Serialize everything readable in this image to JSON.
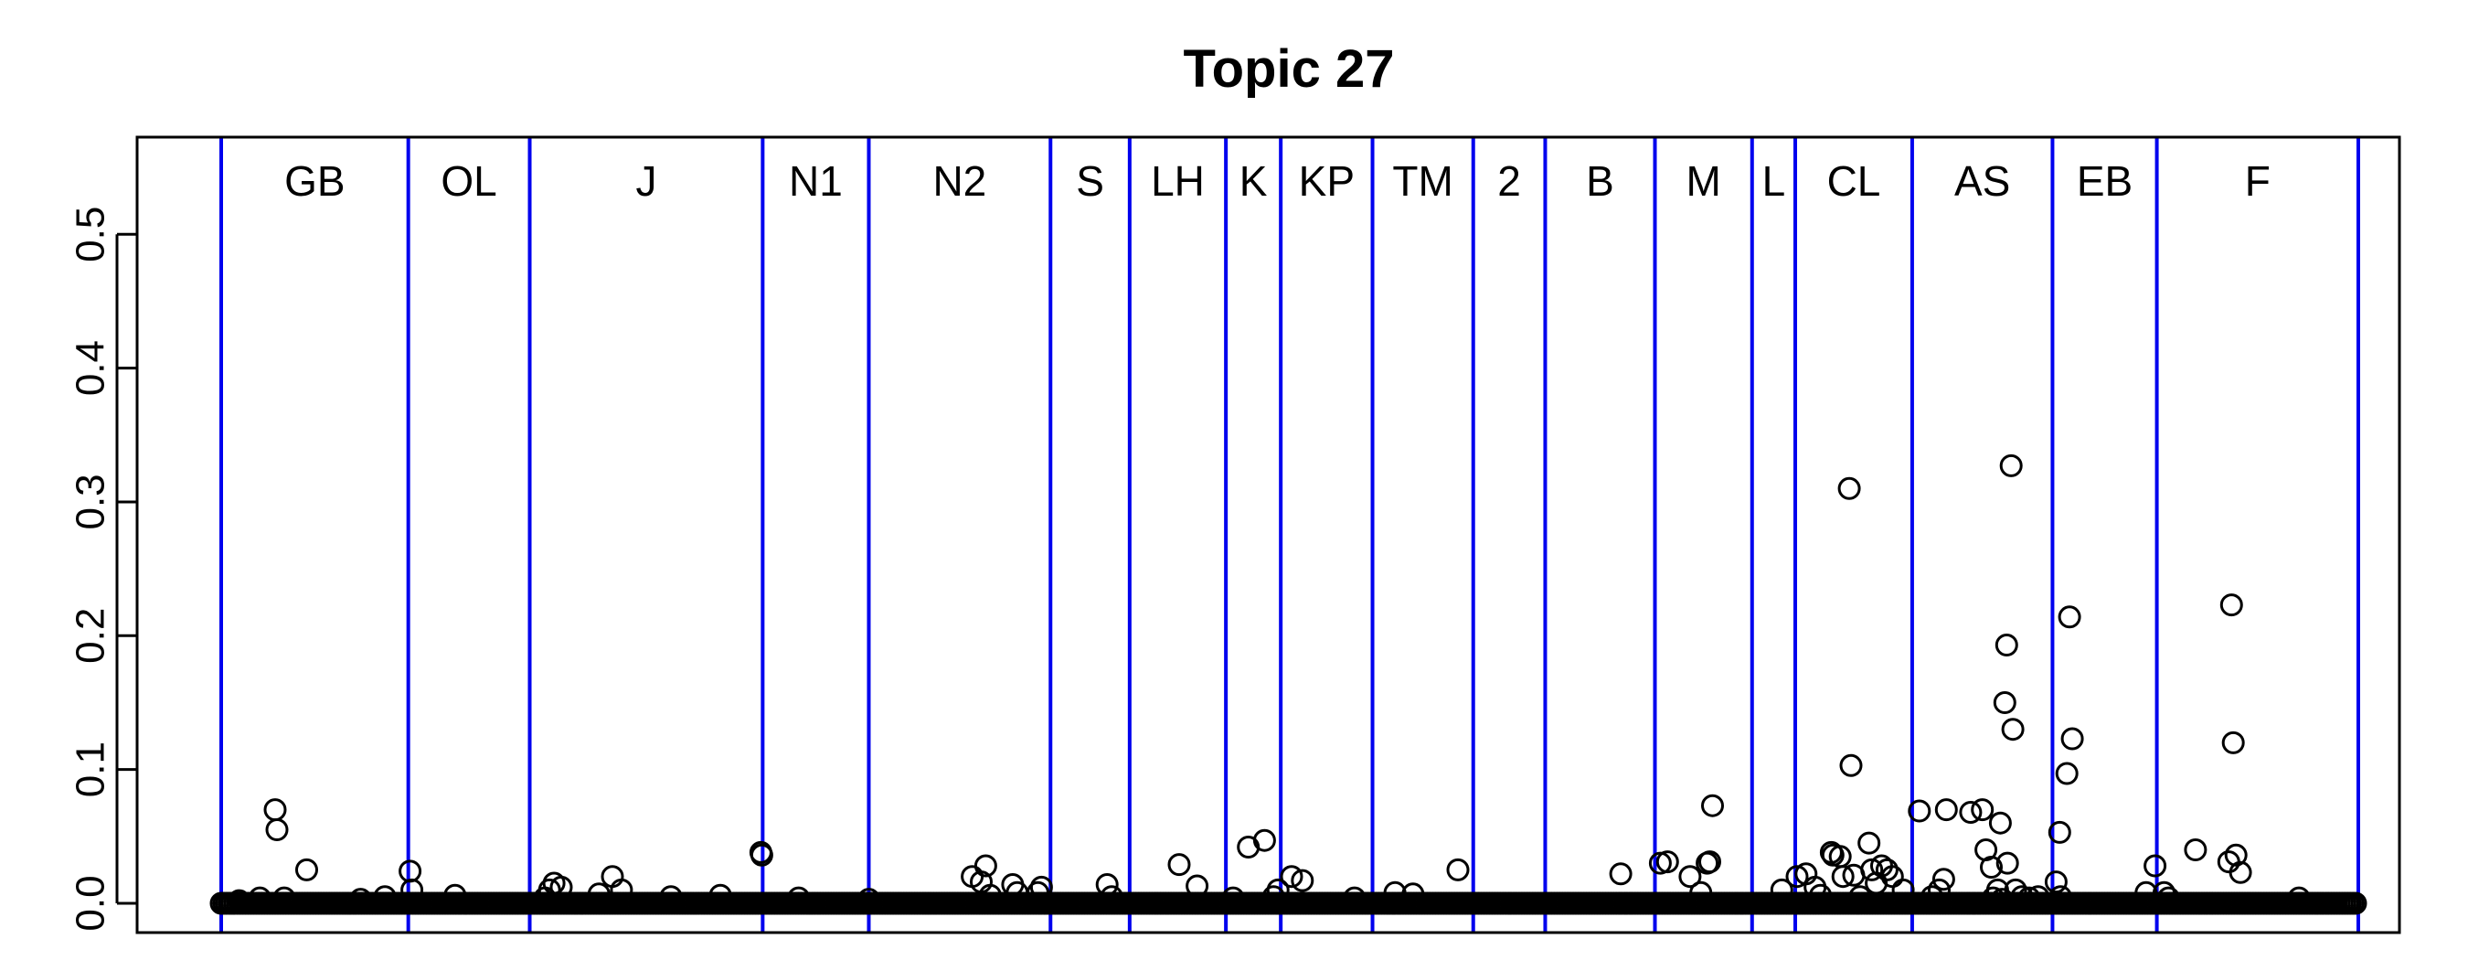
{
  "chart_data": {
    "type": "scatter",
    "title": "Topic 27",
    "xlabel": "",
    "ylabel": "",
    "ylim": [
      0,
      0.55
    ],
    "yticks": [
      "0.0",
      "0.1",
      "0.2",
      "0.3",
      "0.4",
      "0.5"
    ],
    "grid": false,
    "legend": "none",
    "colors": {
      "points": "#000000",
      "dividers": "#0000ee",
      "frame": "#000000"
    },
    "n_documents": 2376,
    "segments": [
      {
        "label": "GB",
        "start": 0,
        "end": 208
      },
      {
        "label": "OL",
        "start": 208,
        "end": 343
      },
      {
        "label": "J",
        "start": 343,
        "end": 602
      },
      {
        "label": "N1",
        "start": 602,
        "end": 720
      },
      {
        "label": "N2",
        "start": 720,
        "end": 922
      },
      {
        "label": "S",
        "start": 922,
        "end": 1010
      },
      {
        "label": "LH",
        "start": 1010,
        "end": 1117
      },
      {
        "label": "K",
        "start": 1117,
        "end": 1178
      },
      {
        "label": "KP",
        "start": 1178,
        "end": 1280
      },
      {
        "label": "TM",
        "start": 1280,
        "end": 1392
      },
      {
        "label": "2",
        "start": 1392,
        "end": 1472
      },
      {
        "label": "B",
        "start": 1472,
        "end": 1594
      },
      {
        "label": "M",
        "start": 1594,
        "end": 1702
      },
      {
        "label": "L",
        "start": 1702,
        "end": 1750
      },
      {
        "label": "CL",
        "start": 1750,
        "end": 1880
      },
      {
        "label": "AS",
        "start": 1880,
        "end": 2036
      },
      {
        "label": "EB",
        "start": 2036,
        "end": 2152
      },
      {
        "label": "F",
        "start": 2152,
        "end": 2376
      }
    ],
    "baseline_value": 0.0,
    "points": [
      {
        "x": 20,
        "y": 0.002
      },
      {
        "x": 43,
        "y": 0.004
      },
      {
        "x": 60,
        "y": 0.07
      },
      {
        "x": 62,
        "y": 0.055
      },
      {
        "x": 70,
        "y": 0.004
      },
      {
        "x": 95,
        "y": 0.025
      },
      {
        "x": 155,
        "y": 0.003
      },
      {
        "x": 182,
        "y": 0.005
      },
      {
        "x": 210,
        "y": 0.024
      },
      {
        "x": 212,
        "y": 0.01
      },
      {
        "x": 260,
        "y": 0.006
      },
      {
        "x": 360,
        "y": 0.004
      },
      {
        "x": 365,
        "y": 0.01
      },
      {
        "x": 370,
        "y": 0.015
      },
      {
        "x": 378,
        "y": 0.012
      },
      {
        "x": 420,
        "y": 0.007
      },
      {
        "x": 435,
        "y": 0.02
      },
      {
        "x": 445,
        "y": 0.01
      },
      {
        "x": 500,
        "y": 0.005
      },
      {
        "x": 555,
        "y": 0.006
      },
      {
        "x": 600,
        "y": 0.038
      },
      {
        "x": 601,
        "y": 0.036
      },
      {
        "x": 642,
        "y": 0.004
      },
      {
        "x": 720,
        "y": 0.003
      },
      {
        "x": 835,
        "y": 0.02
      },
      {
        "x": 845,
        "y": 0.016
      },
      {
        "x": 850,
        "y": 0.028
      },
      {
        "x": 855,
        "y": 0.006
      },
      {
        "x": 880,
        "y": 0.014
      },
      {
        "x": 885,
        "y": 0.008
      },
      {
        "x": 908,
        "y": 0.008
      },
      {
        "x": 912,
        "y": 0.012
      },
      {
        "x": 985,
        "y": 0.014
      },
      {
        "x": 990,
        "y": 0.005
      },
      {
        "x": 1065,
        "y": 0.029
      },
      {
        "x": 1085,
        "y": 0.013
      },
      {
        "x": 1125,
        "y": 0.004
      },
      {
        "x": 1142,
        "y": 0.042
      },
      {
        "x": 1160,
        "y": 0.047
      },
      {
        "x": 1170,
        "y": 0.005
      },
      {
        "x": 1175,
        "y": 0.01
      },
      {
        "x": 1190,
        "y": 0.02
      },
      {
        "x": 1202,
        "y": 0.017
      },
      {
        "x": 1260,
        "y": 0.004
      },
      {
        "x": 1305,
        "y": 0.008
      },
      {
        "x": 1325,
        "y": 0.007
      },
      {
        "x": 1375,
        "y": 0.025
      },
      {
        "x": 1556,
        "y": 0.022
      },
      {
        "x": 1600,
        "y": 0.03
      },
      {
        "x": 1608,
        "y": 0.031
      },
      {
        "x": 1633,
        "y": 0.02
      },
      {
        "x": 1645,
        "y": 0.008
      },
      {
        "x": 1652,
        "y": 0.03
      },
      {
        "x": 1655,
        "y": 0.031
      },
      {
        "x": 1658,
        "y": 0.073
      },
      {
        "x": 1735,
        "y": 0.01
      },
      {
        "x": 1752,
        "y": 0.02
      },
      {
        "x": 1762,
        "y": 0.022
      },
      {
        "x": 1772,
        "y": 0.012
      },
      {
        "x": 1778,
        "y": 0.006
      },
      {
        "x": 1790,
        "y": 0.038
      },
      {
        "x": 1792,
        "y": 0.036
      },
      {
        "x": 1800,
        "y": 0.035
      },
      {
        "x": 1803,
        "y": 0.02
      },
      {
        "x": 1810,
        "y": 0.31
      },
      {
        "x": 1812,
        "y": 0.103
      },
      {
        "x": 1815,
        "y": 0.021
      },
      {
        "x": 1822,
        "y": 0.005
      },
      {
        "x": 1832,
        "y": 0.045
      },
      {
        "x": 1835,
        "y": 0.025
      },
      {
        "x": 1840,
        "y": 0.015
      },
      {
        "x": 1846,
        "y": 0.028
      },
      {
        "x": 1852,
        "y": 0.025
      },
      {
        "x": 1858,
        "y": 0.02
      },
      {
        "x": 1870,
        "y": 0.01
      },
      {
        "x": 1888,
        "y": 0.069
      },
      {
        "x": 1902,
        "y": 0.005
      },
      {
        "x": 1910,
        "y": 0.01
      },
      {
        "x": 1915,
        "y": 0.018
      },
      {
        "x": 1918,
        "y": 0.07
      },
      {
        "x": 1945,
        "y": 0.068
      },
      {
        "x": 1958,
        "y": 0.07
      },
      {
        "x": 1962,
        "y": 0.04
      },
      {
        "x": 1968,
        "y": 0.027
      },
      {
        "x": 1970,
        "y": 0.004
      },
      {
        "x": 1975,
        "y": 0.01
      },
      {
        "x": 1978,
        "y": 0.06
      },
      {
        "x": 1980,
        "y": 0.003
      },
      {
        "x": 1983,
        "y": 0.15
      },
      {
        "x": 1985,
        "y": 0.193
      },
      {
        "x": 1986,
        "y": 0.03
      },
      {
        "x": 1990,
        "y": 0.327
      },
      {
        "x": 1992,
        "y": 0.13
      },
      {
        "x": 1995,
        "y": 0.01
      },
      {
        "x": 2002,
        "y": 0.005
      },
      {
        "x": 2010,
        "y": 0.004
      },
      {
        "x": 2020,
        "y": 0.005
      },
      {
        "x": 2040,
        "y": 0.016
      },
      {
        "x": 2044,
        "y": 0.053
      },
      {
        "x": 2052,
        "y": 0.097
      },
      {
        "x": 2055,
        "y": 0.214
      },
      {
        "x": 2058,
        "y": 0.123
      },
      {
        "x": 2045,
        "y": 0.005
      },
      {
        "x": 2140,
        "y": 0.008
      },
      {
        "x": 2150,
        "y": 0.028
      },
      {
        "x": 2160,
        "y": 0.008
      },
      {
        "x": 2165,
        "y": 0.004
      },
      {
        "x": 2195,
        "y": 0.04
      },
      {
        "x": 2232,
        "y": 0.031
      },
      {
        "x": 2235,
        "y": 0.223
      },
      {
        "x": 2237,
        "y": 0.12
      },
      {
        "x": 2240,
        "y": 0.036
      },
      {
        "x": 2245,
        "y": 0.023
      },
      {
        "x": 2310,
        "y": 0.004
      }
    ]
  }
}
